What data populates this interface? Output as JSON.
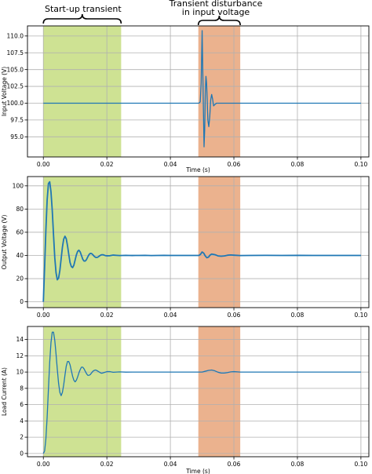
{
  "annotations": {
    "startup": "Start-up transient",
    "disturbance_line1": "Transient disturbance",
    "disturbance_line2": "in input voltage"
  },
  "colors": {
    "line": "#1f77b4",
    "startup_band": "#c6dd80",
    "disturbance_band": "#e8a47a",
    "grid": "#b0b0b0"
  },
  "chart_data": [
    {
      "type": "line",
      "xlabel": "Time (s)",
      "ylabel": "Input Voltage (V)",
      "xlim": [
        -0.005,
        0.1025
      ],
      "ylim": [
        92.0,
        111.5
      ],
      "xticks": [
        0.0,
        0.02,
        0.04,
        0.06,
        0.08,
        0.1
      ],
      "xtick_labels": [
        "0.00",
        "0.02",
        "0.04",
        "0.06",
        "0.08",
        "0.10"
      ],
      "yticks": [
        95.0,
        97.5,
        100.0,
        102.5,
        105.0,
        107.5,
        110.0
      ],
      "ytick_labels": [
        "95.0",
        "97.5",
        "100.0",
        "102.5",
        "105.0",
        "107.5",
        "110.0"
      ],
      "grid": true,
      "shaded_regions": [
        {
          "from": 0.0,
          "to": 0.0245,
          "color": "startup"
        },
        {
          "from": 0.0488,
          "to": 0.062,
          "color": "disturbance"
        }
      ],
      "series": [
        {
          "x": [
            0.0,
            0.049,
            0.0494,
            0.0497,
            0.05,
            0.0503,
            0.0506,
            0.0508,
            0.051,
            0.0512,
            0.0514,
            0.0516,
            0.0518,
            0.0521,
            0.0524,
            0.0527,
            0.053,
            0.0533,
            0.0536,
            0.054,
            0.0545,
            0.1
          ],
          "y": [
            100.0,
            100.0,
            100.2,
            103.0,
            110.8,
            102.0,
            93.5,
            96.0,
            101.5,
            104.0,
            103.0,
            100.5,
            97.5,
            96.5,
            98.0,
            100.5,
            101.3,
            100.6,
            99.6,
            99.8,
            100.0,
            100.0
          ]
        }
      ]
    },
    {
      "type": "line",
      "xlabel": "",
      "ylabel": "Output Voltage (V)",
      "xlim": [
        -0.005,
        0.1025
      ],
      "ylim": [
        -5,
        108
      ],
      "xticks": [
        0.0,
        0.02,
        0.04,
        0.06,
        0.08,
        0.1
      ],
      "xtick_labels": [
        "0.00",
        "0.02",
        "0.04",
        "0.06",
        "0.08",
        "0.10"
      ],
      "yticks": [
        0,
        20,
        40,
        60,
        80,
        100
      ],
      "ytick_labels": [
        "0",
        "20",
        "40",
        "60",
        "80",
        "100"
      ],
      "grid": true,
      "shaded_regions": [
        {
          "from": 0.0,
          "to": 0.0245,
          "color": "startup"
        },
        {
          "from": 0.0488,
          "to": 0.062,
          "color": "disturbance"
        }
      ],
      "series": [
        {
          "x": [
            0.0,
            0.0004,
            0.0008,
            0.0012,
            0.0016,
            0.002,
            0.0024,
            0.0028,
            0.0032,
            0.0036,
            0.004,
            0.0044,
            0.0048,
            0.0052,
            0.0056,
            0.006,
            0.0064,
            0.0068,
            0.0072,
            0.0076,
            0.008,
            0.0084,
            0.0088,
            0.0092,
            0.0096,
            0.01,
            0.0104,
            0.0108,
            0.0112,
            0.0116,
            0.012,
            0.0124,
            0.0128,
            0.0132,
            0.0136,
            0.014,
            0.0144,
            0.0148,
            0.0152,
            0.0156,
            0.016,
            0.0164,
            0.0168,
            0.0172,
            0.0176,
            0.018,
            0.0184,
            0.0188,
            0.0192,
            0.0196,
            0.02,
            0.021,
            0.022,
            0.023,
            0.024,
            0.025,
            0.026,
            0.027,
            0.028,
            0.029,
            0.03,
            0.032,
            0.034,
            0.036,
            0.038,
            0.04,
            0.042,
            0.044,
            0.046,
            0.048,
            0.049,
            0.0495,
            0.05,
            0.0505,
            0.051,
            0.0515,
            0.052,
            0.0525,
            0.053,
            0.054,
            0.055,
            0.056,
            0.057,
            0.058,
            0.059,
            0.06,
            0.062,
            0.065,
            0.07,
            0.075,
            0.08,
            0.085,
            0.09,
            0.095,
            0.1
          ],
          "y": [
            0.0,
            30.0,
            62.0,
            88.0,
            102.0,
            103.5,
            95.0,
            79.0,
            58.0,
            38.0,
            25.0,
            19.0,
            20.5,
            27.0,
            37.0,
            47.0,
            54.0,
            56.5,
            54.5,
            48.5,
            41.0,
            34.0,
            30.5,
            29.5,
            31.5,
            36.0,
            40.5,
            43.5,
            44.5,
            43.0,
            40.0,
            36.8,
            35.2,
            35.2,
            36.5,
            38.8,
            40.8,
            41.8,
            41.6,
            40.6,
            39.3,
            38.4,
            38.2,
            38.6,
            39.4,
            40.2,
            40.6,
            40.6,
            40.2,
            39.8,
            39.7,
            39.8,
            40.3,
            40.1,
            39.9,
            40.0,
            40.1,
            40.0,
            39.95,
            40.0,
            40.0,
            40.1,
            39.9,
            40.0,
            40.05,
            40.0,
            40.0,
            40.0,
            40.0,
            40.0,
            40.0,
            41.0,
            43.0,
            42.0,
            39.5,
            38.0,
            38.5,
            40.3,
            41.2,
            40.7,
            39.6,
            39.3,
            39.6,
            40.2,
            40.4,
            40.2,
            39.9,
            40.0,
            40.1,
            40.0,
            40.05,
            40.0,
            40.0,
            40.0,
            40.0
          ]
        }
      ]
    },
    {
      "type": "line",
      "xlabel": "Time (s)",
      "ylabel": "Load Current (A)",
      "xlim": [
        -0.005,
        0.1025
      ],
      "ylim": [
        -0.4,
        15.6
      ],
      "xticks": [
        0.0,
        0.02,
        0.04,
        0.06,
        0.08,
        0.1
      ],
      "xtick_labels": [
        "0.00",
        "0.02",
        "0.04",
        "0.06",
        "0.08",
        "0.10"
      ],
      "yticks": [
        0,
        2,
        4,
        6,
        8,
        10,
        12,
        14
      ],
      "ytick_labels": [
        "0",
        "2",
        "4",
        "6",
        "8",
        "10",
        "12",
        "14"
      ],
      "grid": true,
      "shaded_regions": [
        {
          "from": 0.0,
          "to": 0.0245,
          "color": "startup"
        },
        {
          "from": 0.0488,
          "to": 0.062,
          "color": "disturbance"
        }
      ],
      "series": [
        {
          "x": [
            0.0,
            0.0004,
            0.0008,
            0.0012,
            0.0016,
            0.002,
            0.0024,
            0.0028,
            0.0032,
            0.0036,
            0.004,
            0.0044,
            0.0048,
            0.0052,
            0.0056,
            0.006,
            0.0064,
            0.0068,
            0.0072,
            0.0076,
            0.008,
            0.0084,
            0.0088,
            0.0092,
            0.0096,
            0.01,
            0.0104,
            0.0108,
            0.0112,
            0.0116,
            0.012,
            0.0124,
            0.0128,
            0.0132,
            0.0136,
            0.014,
            0.0144,
            0.0148,
            0.0152,
            0.0156,
            0.016,
            0.0164,
            0.0168,
            0.0172,
            0.0176,
            0.018,
            0.0184,
            0.0188,
            0.0192,
            0.0196,
            0.02,
            0.021,
            0.022,
            0.023,
            0.024,
            0.026,
            0.028,
            0.03,
            0.035,
            0.04,
            0.045,
            0.049,
            0.05,
            0.051,
            0.052,
            0.053,
            0.054,
            0.055,
            0.056,
            0.057,
            0.058,
            0.059,
            0.06,
            0.062,
            0.065,
            0.07,
            0.08,
            0.09,
            0.1
          ],
          "y": [
            0.0,
            0.3,
            1.8,
            4.5,
            7.9,
            11.2,
            13.6,
            14.9,
            14.9,
            13.9,
            12.2,
            10.3,
            8.6,
            7.5,
            7.1,
            7.5,
            8.4,
            9.6,
            10.7,
            11.3,
            11.3,
            10.9,
            10.2,
            9.5,
            9.0,
            8.8,
            9.0,
            9.4,
            9.9,
            10.3,
            10.6,
            10.6,
            10.4,
            10.1,
            9.8,
            9.6,
            9.6,
            9.7,
            9.9,
            10.1,
            10.2,
            10.25,
            10.2,
            10.1,
            10.0,
            9.9,
            9.85,
            9.9,
            9.95,
            10.0,
            10.05,
            10.05,
            9.97,
            10.0,
            10.02,
            9.99,
            10.0,
            10.0,
            10.0,
            10.0,
            10.0,
            10.0,
            10.0,
            10.1,
            10.2,
            10.25,
            10.15,
            9.98,
            9.88,
            9.88,
            9.94,
            10.02,
            10.05,
            10.0,
            10.0,
            10.0,
            10.0,
            10.0,
            10.0
          ]
        }
      ]
    }
  ]
}
